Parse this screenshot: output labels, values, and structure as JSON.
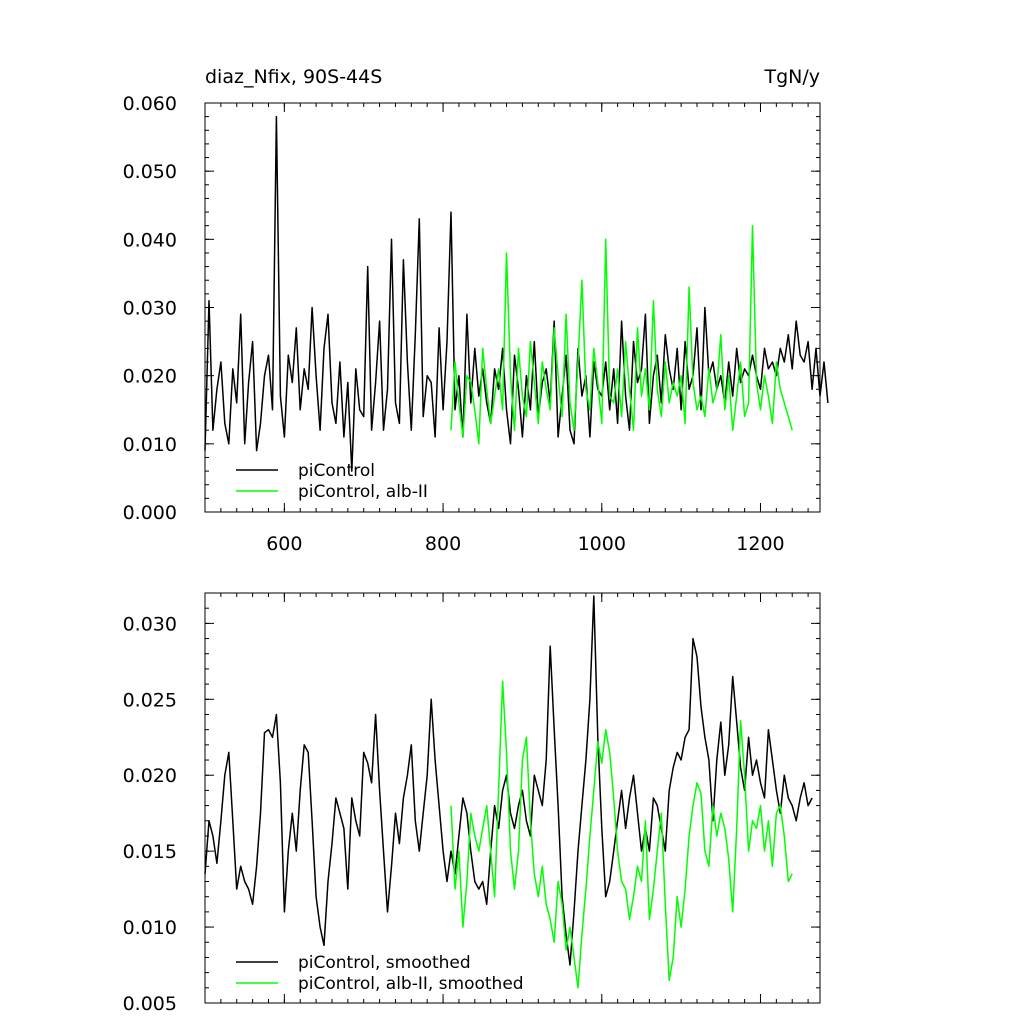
{
  "chart_data": [
    {
      "type": "line",
      "title": "diaz_Nfix, 90S-44S",
      "units": "TgN/y",
      "xlim": [
        500,
        1275
      ],
      "ylim": [
        0.0,
        0.06
      ],
      "xticks": [
        600,
        800,
        1000,
        1200
      ],
      "xtick_labels": [
        "600",
        "800",
        "1000",
        "1200"
      ],
      "yticks": [
        0.0,
        0.01,
        0.02,
        0.03,
        0.04,
        0.05,
        0.06
      ],
      "ytick_labels": [
        "0.000",
        "0.010",
        "0.020",
        "0.030",
        "0.040",
        "0.050",
        "0.060"
      ],
      "legend": {
        "position": "bottom-left",
        "entries": [
          {
            "label": "piControl",
            "color": "#000000"
          },
          {
            "label": "piControl, alb-II",
            "color": "#00ff00"
          }
        ]
      },
      "series": [
        {
          "name": "piControl",
          "color": "#000000",
          "x_start": 500,
          "x_step": 5,
          "values": [
            0.009,
            0.031,
            0.012,
            0.018,
            0.022,
            0.013,
            0.01,
            0.021,
            0.016,
            0.029,
            0.01,
            0.019,
            0.025,
            0.009,
            0.013,
            0.02,
            0.023,
            0.015,
            0.058,
            0.017,
            0.011,
            0.023,
            0.019,
            0.027,
            0.015,
            0.021,
            0.018,
            0.03,
            0.02,
            0.012,
            0.024,
            0.029,
            0.016,
            0.013,
            0.022,
            0.011,
            0.019,
            0.006,
            0.021,
            0.015,
            0.014,
            0.036,
            0.012,
            0.019,
            0.028,
            0.012,
            0.018,
            0.04,
            0.016,
            0.013,
            0.037,
            0.022,
            0.012,
            0.026,
            0.043,
            0.014,
            0.02,
            0.019,
            0.011,
            0.027,
            0.015,
            0.025,
            0.044,
            0.015,
            0.02,
            0.011,
            0.029,
            0.016,
            0.024,
            0.017,
            0.021,
            0.016,
            0.013,
            0.021,
            0.018,
            0.024,
            0.015,
            0.01,
            0.023,
            0.018,
            0.011,
            0.02,
            0.015,
            0.025,
            0.014,
            0.019,
            0.021,
            0.016,
            0.028,
            0.011,
            0.017,
            0.023,
            0.012,
            0.01,
            0.024,
            0.017,
            0.02,
            0.011,
            0.022,
            0.018,
            0.017,
            0.022,
            0.015,
            0.021,
            0.013,
            0.028,
            0.017,
            0.012,
            0.025,
            0.019,
            0.021,
            0.029,
            0.013,
            0.02,
            0.023,
            0.016,
            0.026,
            0.021,
            0.018,
            0.024,
            0.015,
            0.025,
            0.018,
            0.02,
            0.027,
            0.015,
            0.03,
            0.02,
            0.022,
            0.018,
            0.02,
            0.016,
            0.022,
            0.017,
            0.024,
            0.019,
            0.021,
            0.02,
            0.023,
            0.02,
            0.018,
            0.024,
            0.021,
            0.022,
            0.02,
            0.024,
            0.022,
            0.026,
            0.021,
            0.028,
            0.023,
            0.022,
            0.025,
            0.018,
            0.024,
            0.017,
            0.022,
            0.016
          ]
        },
        {
          "name": "piControl, alb-II",
          "color": "#00ff00",
          "x_start": 810,
          "x_step": 5,
          "values": [
            0.012,
            0.022,
            0.016,
            0.011,
            0.02,
            0.019,
            0.015,
            0.01,
            0.024,
            0.018,
            0.013,
            0.017,
            0.021,
            0.015,
            0.038,
            0.02,
            0.012,
            0.024,
            0.017,
            0.014,
            0.025,
            0.019,
            0.013,
            0.022,
            0.018,
            0.015,
            0.027,
            0.02,
            0.014,
            0.029,
            0.016,
            0.012,
            0.022,
            0.034,
            0.018,
            0.015,
            0.024,
            0.019,
            0.013,
            0.04,
            0.017,
            0.016,
            0.021,
            0.014,
            0.025,
            0.018,
            0.012,
            0.027,
            0.017,
            0.021,
            0.015,
            0.031,
            0.018,
            0.014,
            0.022,
            0.016,
            0.019,
            0.017,
            0.02,
            0.013,
            0.033,
            0.019,
            0.015,
            0.017,
            0.014,
            0.021,
            0.016,
            0.018,
            0.026,
            0.015,
            0.02,
            0.012,
            0.017,
            0.022,
            0.014,
            0.016,
            0.042,
            0.019,
            0.015,
            0.02,
            0.017,
            0.013,
            0.022,
            0.018,
            0.016,
            0.014,
            0.012
          ]
        }
      ]
    },
    {
      "type": "line",
      "xlim": [
        500,
        1275
      ],
      "ylim": [
        0.005,
        0.032
      ],
      "xticks": [
        600,
        800,
        1000,
        1200
      ],
      "yticks": [
        0.005,
        0.01,
        0.015,
        0.02,
        0.025,
        0.03
      ],
      "ytick_labels": [
        "0.005",
        "0.010",
        "0.015",
        "0.020",
        "0.025",
        "0.030"
      ],
      "legend": {
        "position": "bottom-left",
        "entries": [
          {
            "label": "piControl, smoothed",
            "color": "#000000"
          },
          {
            "label": "piControl, alb-II, smoothed",
            "color": "#00ff00"
          }
        ]
      },
      "series": [
        {
          "name": "piControl, smoothed",
          "color": "#000000",
          "x_start": 500,
          "x_step": 5,
          "values": [
            0.0135,
            0.017,
            0.016,
            0.0142,
            0.017,
            0.02,
            0.0215,
            0.017,
            0.0125,
            0.014,
            0.013,
            0.0125,
            0.0115,
            0.014,
            0.0175,
            0.0228,
            0.023,
            0.0225,
            0.024,
            0.0195,
            0.011,
            0.015,
            0.0175,
            0.015,
            0.019,
            0.022,
            0.0215,
            0.017,
            0.012,
            0.01,
            0.0088,
            0.013,
            0.0155,
            0.0185,
            0.0175,
            0.0165,
            0.0125,
            0.0185,
            0.017,
            0.016,
            0.0215,
            0.0208,
            0.0195,
            0.024,
            0.019,
            0.015,
            0.011,
            0.014,
            0.0175,
            0.0155,
            0.0185,
            0.02,
            0.022,
            0.017,
            0.015,
            0.0175,
            0.02,
            0.025,
            0.021,
            0.018,
            0.015,
            0.013,
            0.015,
            0.0135,
            0.016,
            0.0185,
            0.0175,
            0.015,
            0.013,
            0.0125,
            0.013,
            0.0115,
            0.015,
            0.018,
            0.0165,
            0.019,
            0.02,
            0.0175,
            0.0165,
            0.018,
            0.019,
            0.017,
            0.016,
            0.02,
            0.019,
            0.018,
            0.021,
            0.0285,
            0.023,
            0.018,
            0.012,
            0.0095,
            0.0075,
            0.011,
            0.015,
            0.018,
            0.021,
            0.025,
            0.0318,
            0.0225,
            0.0165,
            0.012,
            0.013,
            0.015,
            0.017,
            0.019,
            0.0165,
            0.0185,
            0.02,
            0.0175,
            0.015,
            0.0165,
            0.015,
            0.0185,
            0.018,
            0.0165,
            0.015,
            0.019,
            0.0205,
            0.0215,
            0.021,
            0.0225,
            0.023,
            0.029,
            0.0278,
            0.0245,
            0.0225,
            0.021,
            0.017,
            0.021,
            0.0235,
            0.02,
            0.022,
            0.0265,
            0.0235,
            0.0205,
            0.019,
            0.0225,
            0.02,
            0.021,
            0.0195,
            0.0185,
            0.023,
            0.021,
            0.019,
            0.0175,
            0.02,
            0.0185,
            0.018,
            0.017,
            0.0185,
            0.0195,
            0.018,
            0.0185
          ]
        },
        {
          "name": "piControl, alb-II, smoothed",
          "color": "#00ff00",
          "x_start": 810,
          "x_step": 5,
          "values": [
            0.018,
            0.0125,
            0.015,
            0.01,
            0.013,
            0.0175,
            0.016,
            0.015,
            0.0165,
            0.018,
            0.015,
            0.012,
            0.019,
            0.0262,
            0.0215,
            0.015,
            0.0125,
            0.015,
            0.021,
            0.0225,
            0.017,
            0.0135,
            0.012,
            0.014,
            0.0115,
            0.0105,
            0.009,
            0.013,
            0.0115,
            0.0085,
            0.01,
            0.008,
            0.006,
            0.0095,
            0.0125,
            0.016,
            0.019,
            0.0222,
            0.0208,
            0.023,
            0.0215,
            0.0185,
            0.015,
            0.013,
            0.0125,
            0.0105,
            0.012,
            0.014,
            0.013,
            0.017,
            0.0105,
            0.0125,
            0.015,
            0.0175,
            0.0115,
            0.0065,
            0.008,
            0.012,
            0.01,
            0.0125,
            0.016,
            0.018,
            0.0195,
            0.0188,
            0.015,
            0.014,
            0.018,
            0.016,
            0.0175,
            0.0165,
            0.0145,
            0.011,
            0.0165,
            0.0236,
            0.02,
            0.015,
            0.017,
            0.0165,
            0.018,
            0.015,
            0.017,
            0.014,
            0.0175,
            0.018,
            0.016,
            0.013,
            0.0135
          ]
        }
      ]
    }
  ]
}
